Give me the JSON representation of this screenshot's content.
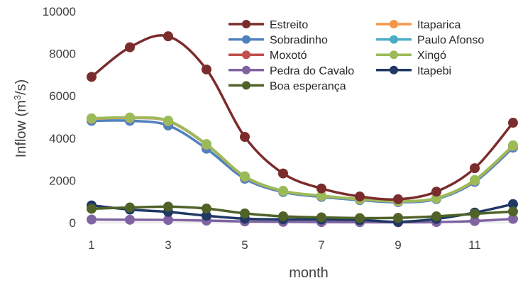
{
  "chart_data": {
    "type": "line",
    "title": "",
    "xlabel": "month",
    "ylabel": "Inflow (m³/s)",
    "ylabel_parts": {
      "main": "Inflow (m",
      "sup": "3",
      "tail": "/s)"
    },
    "x": [
      1,
      2,
      3,
      4,
      5,
      6,
      7,
      8,
      9,
      10,
      11,
      12
    ],
    "xlim": [
      1,
      12
    ],
    "xticks": [
      1,
      3,
      5,
      7,
      9,
      11
    ],
    "ylim": [
      0,
      10000
    ],
    "yticks": [
      0,
      2000,
      4000,
      6000,
      8000,
      10000
    ],
    "grid": false,
    "legend_position": "top-right",
    "series": [
      {
        "name": "Estreito",
        "color": "#7B2C2C",
        "values": [
          6900,
          8300,
          8820,
          7250,
          4060,
          2330,
          1620,
          1240,
          1110,
          1470,
          2580,
          4730
        ]
      },
      {
        "name": "Itaparica",
        "color": "#F79646",
        "values": [
          4920,
          4960,
          4810,
          3700,
          2180,
          1500,
          1270,
          1110,
          1010,
          1160,
          2000,
          3640
        ]
      },
      {
        "name": "Sobradinho",
        "color": "#4F81BD",
        "values": [
          4820,
          4820,
          4600,
          3500,
          2080,
          1450,
          1220,
          1070,
          970,
          1120,
          1930,
          3550
        ]
      },
      {
        "name": "Paulo Afonso",
        "color": "#4BACC6",
        "values": [
          4910,
          4950,
          4800,
          3690,
          2170,
          1490,
          1260,
          1100,
          1000,
          1150,
          1990,
          3630
        ]
      },
      {
        "name": "Moxotó",
        "color": "#C0504D",
        "values": [
          4920,
          4960,
          4810,
          3700,
          2180,
          1500,
          1270,
          1110,
          1010,
          1160,
          2000,
          3640
        ]
      },
      {
        "name": "Xingó",
        "color": "#9BBB59",
        "values": [
          4940,
          4980,
          4830,
          3720,
          2200,
          1510,
          1280,
          1120,
          1020,
          1170,
          2020,
          3660
        ]
      },
      {
        "name": "Pedra do Cavalo",
        "color": "#8064A2",
        "values": [
          150,
          140,
          130,
          100,
          60,
          40,
          30,
          25,
          20,
          30,
          80,
          180
        ]
      },
      {
        "name": "Itapebi",
        "color": "#1F3864",
        "values": [
          820,
          620,
          510,
          330,
          190,
          160,
          150,
          130,
          40,
          180,
          480,
          880
        ]
      },
      {
        "name": "Boa esperança",
        "color": "#4F6228",
        "values": [
          660,
          720,
          760,
          670,
          440,
          300,
          250,
          220,
          230,
          300,
          420,
          530
        ]
      }
    ]
  }
}
